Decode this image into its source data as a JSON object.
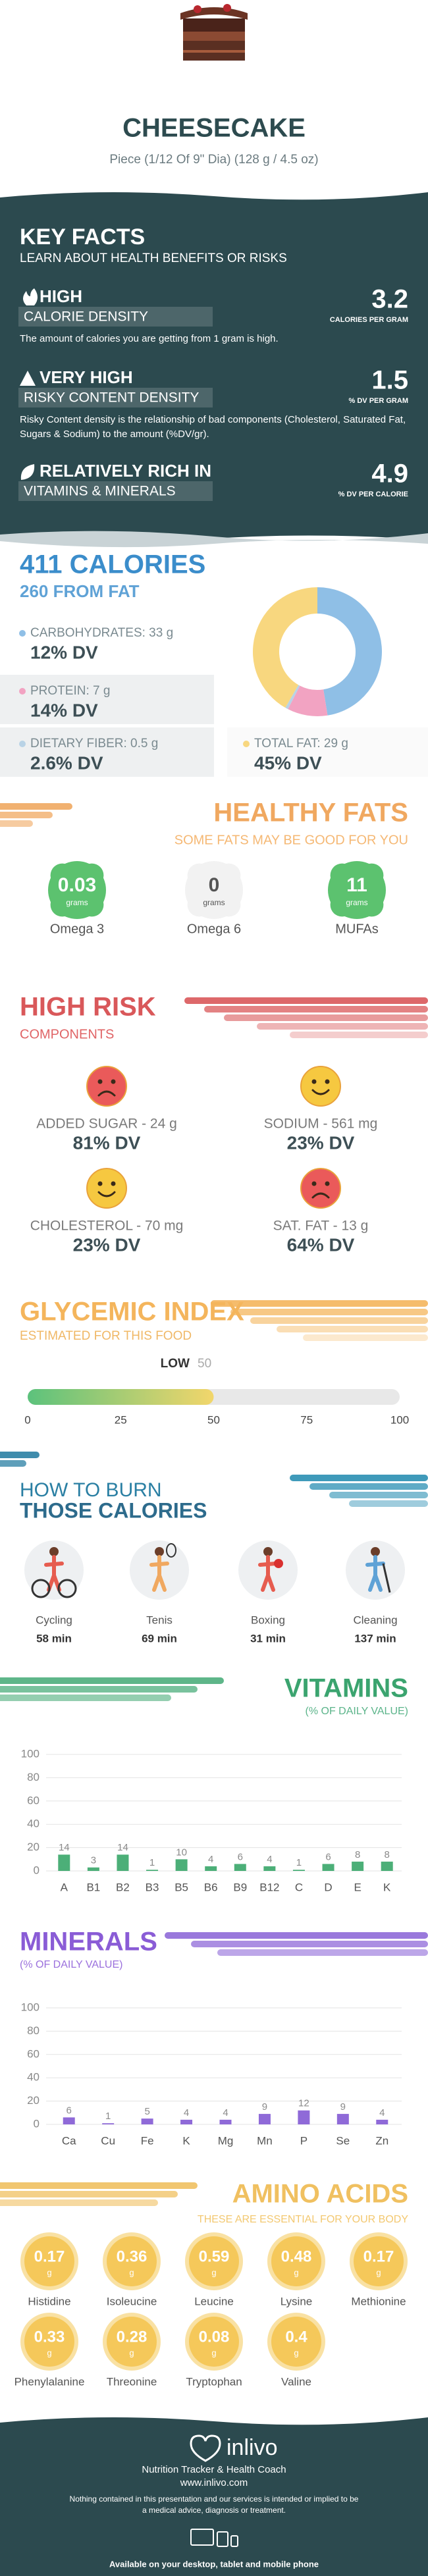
{
  "header": {
    "title": "CHEESECAKE",
    "subtitle": "Piece (1/12 Of 9\" Dia) (128 g / 4.5 oz)"
  },
  "key_facts": {
    "title": "KEY FACTS",
    "subtitle": "LEARN ABOUT HEALTH BENEFITS OR RISKS",
    "items": [
      {
        "level": "HIGH",
        "label": "CALORIE DENSITY",
        "value": 3.2,
        "unit": "CALORIES PER GRAM",
        "description": "The amount of calories you are getting from 1 gram is high."
      },
      {
        "level": "VERY HIGH",
        "label": "RISKY CONTENT DENSITY",
        "value": 1.5,
        "unit": "% DV PER GRAM",
        "description": "Risky Content density is the relationship of bad components (Cholesterol, Saturated Fat, Sugars & Sodium) to the amount (%DV/gr)."
      },
      {
        "level": "RELATIVELY RICH  IN",
        "label": "VITAMINS & MINERALS",
        "value": 4.9,
        "unit": "% DV PER CALORIE"
      }
    ]
  },
  "calories": {
    "title": "411 CALORIES",
    "subtitle": "260 FROM FAT",
    "nutrients": [
      {
        "label": "CARBOHYDRATES: 33 g",
        "grams": 33,
        "dv": "12% DV",
        "color": "#8fbfe6"
      },
      {
        "label": "PROTEIN: 7 g",
        "grams": 7,
        "dv": "14% DV",
        "color": "#f2a3c2"
      },
      {
        "label": "DIETARY FIBER: 0.5 g",
        "grams": 0.5,
        "dv": "2.6% DV",
        "color": "#b9d3e6"
      },
      {
        "label": "TOTAL FAT: 29 g",
        "grams": 29,
        "dv": "45% DV",
        "color": "#f8d77f"
      }
    ]
  },
  "healthy_fats": {
    "title": "HEALTHY FATS",
    "subtitle": "SOME FATS MAY BE GOOD FOR YOU",
    "unit": "grams",
    "items": [
      {
        "name": "Omega 3",
        "value": 0.03,
        "color": "#5cc26f",
        "text_color": "#ffffff"
      },
      {
        "name": "Omega 6",
        "value": 0,
        "color": "#f2f2f2",
        "text_color": "#555555"
      },
      {
        "name": "MUFAs",
        "value": 11,
        "color": "#5cc26f",
        "text_color": "#ffffff"
      }
    ]
  },
  "high_risk": {
    "title": "HIGH RISK",
    "subtitle": "COMPONENTS",
    "items": [
      {
        "label": "ADDED SUGAR - 24 g",
        "dv": "81% DV",
        "mood": "sad",
        "color": "#ea5a5a"
      },
      {
        "label": "SODIUM - 561 mg",
        "dv": "23% DV",
        "mood": "happy",
        "color": "#f6c840"
      },
      {
        "label": "CHOLESTEROL - 70 mg",
        "dv": "23% DV",
        "mood": "happy",
        "color": "#f6c840"
      },
      {
        "label": "SAT. FAT - 13 g",
        "dv": "64% DV",
        "mood": "sad",
        "color": "#ea5a5a"
      }
    ]
  },
  "glycemic_index": {
    "title": "GLYCEMIC INDEX",
    "subtitle": "ESTIMATED FOR THIS FOOD",
    "level": "LOW",
    "value": 50,
    "xlim": [
      0,
      100
    ],
    "xticks": [
      0,
      25,
      50,
      75,
      100
    ]
  },
  "burn": {
    "title": "HOW TO BURN",
    "subtitle": "THOSE CALORIES",
    "activities": [
      {
        "name": "Cycling",
        "time": "58 min"
      },
      {
        "name": "Tenis",
        "time": "69 min"
      },
      {
        "name": "Boxing",
        "time": "31 min"
      },
      {
        "name": "Cleaning",
        "time": "137 min"
      }
    ]
  },
  "chart_data": [
    {
      "type": "bar",
      "title": "VITAMINS",
      "subtitle": "(% OF DAILY VALUE)",
      "categories": [
        "A",
        "B1",
        "B2",
        "B3",
        "B5",
        "B6",
        "B9",
        "B12",
        "C",
        "D",
        "E",
        "K"
      ],
      "values": [
        14,
        3,
        14,
        1,
        10,
        4,
        6,
        4,
        1,
        6,
        8,
        8
      ],
      "color": "#4caf78",
      "ylim": [
        0,
        100
      ],
      "yticks": [
        0,
        20,
        40,
        60,
        80,
        100
      ],
      "grid": true
    },
    {
      "type": "bar",
      "title": "MINERALS",
      "subtitle": "(% OF DAILY VALUE)",
      "categories": [
        "Ca",
        "Cu",
        "Fe",
        "K",
        "Mg",
        "Mn",
        "P",
        "Se",
        "Zn"
      ],
      "values": [
        6,
        1,
        5,
        4,
        4,
        9,
        12,
        9,
        4
      ],
      "color": "#8f6ad8",
      "ylim": [
        0,
        100
      ],
      "yticks": [
        0,
        20,
        40,
        60,
        80,
        100
      ],
      "grid": true
    }
  ],
  "amino_acids": {
    "title": "AMINO ACIDS",
    "subtitle": "THESE ARE ESSENTIAL FOR YOUR BODY",
    "unit": "g",
    "items": [
      {
        "name": "Histidine",
        "value": 0.17
      },
      {
        "name": "Isoleucine",
        "value": 0.36
      },
      {
        "name": "Leucine",
        "value": 0.59
      },
      {
        "name": "Lysine",
        "value": 0.48
      },
      {
        "name": "Methionine",
        "value": 0.17
      },
      {
        "name": "Phenylalanine",
        "value": 0.33
      },
      {
        "name": "Threonine",
        "value": 0.28
      },
      {
        "name": "Tryptophan",
        "value": 0.08
      },
      {
        "name": "Valine",
        "value": 0.4
      }
    ]
  },
  "footer": {
    "brand": "inlivo",
    "tagline": "Nutrition Tracker & Health Coach",
    "url": "www.inlivo.com",
    "disclaimer": "Nothing contained in this presentation and our services is intended or implied to be a medical advice, diagnosis or treatment.",
    "availability": "Available on your desktop, tablet and mobile phone"
  }
}
